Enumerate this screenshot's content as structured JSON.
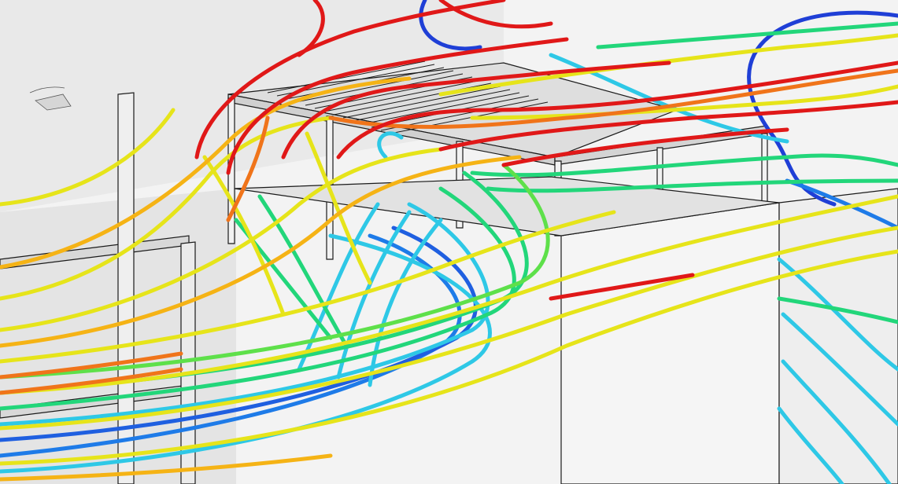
{
  "scene": {
    "background": "#f4f4f4",
    "structure_fill": "#ececec",
    "structure_dark": "#dcdcdc",
    "structure_stroke": "#1a1a1a"
  },
  "streamlines": {
    "colormap": [
      "#1f3fd6",
      "#1e7be8",
      "#2ec8e6",
      "#22d67a",
      "#8fe02a",
      "#e6e41a",
      "#f5b315",
      "#f0741a",
      "#e01818"
    ]
  }
}
